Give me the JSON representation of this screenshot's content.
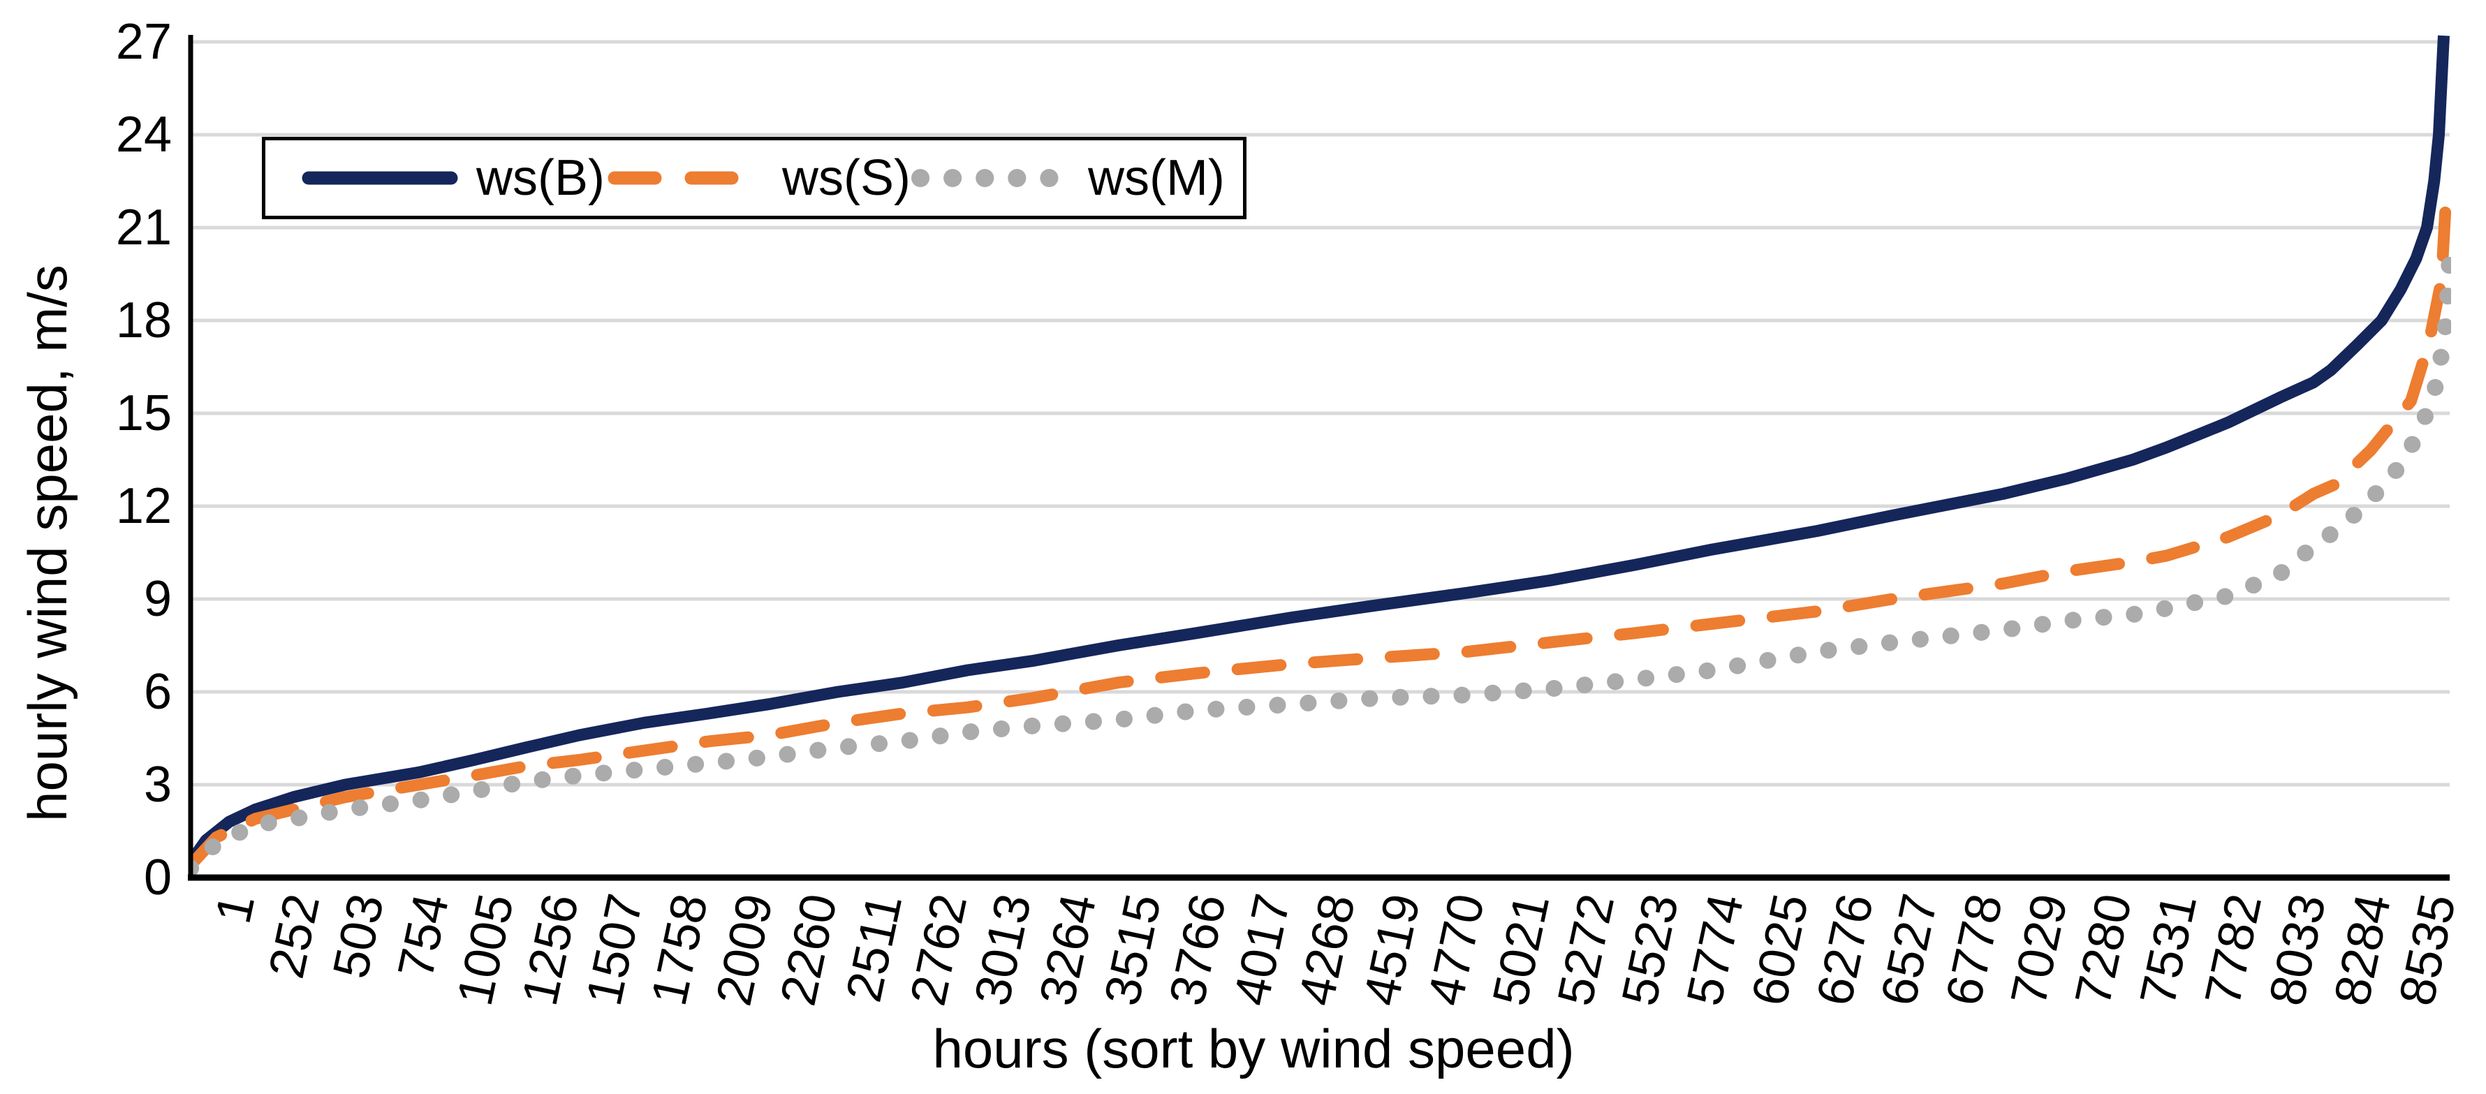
{
  "figure": {
    "background": "#FFFFFF",
    "text_color": "#000000"
  },
  "chart_data": {
    "type": "line",
    "title": "",
    "xlabel": "hours (sort by wind speed)",
    "ylabel": "hourly wind speed, m/s",
    "ylim": [
      0,
      27
    ],
    "y_ticks": [
      0,
      3,
      6,
      9,
      12,
      15,
      18,
      21,
      24,
      27
    ],
    "x_max": 8760,
    "x_ticks": [
      1,
      252,
      503,
      754,
      1005,
      1256,
      1507,
      1758,
      2009,
      2260,
      2511,
      2762,
      3013,
      3264,
      3515,
      3766,
      4017,
      4268,
      4519,
      4770,
      5021,
      5272,
      5523,
      5774,
      6025,
      6276,
      6527,
      6778,
      7029,
      7280,
      7531,
      7782,
      8033,
      8284,
      8535
    ],
    "grid": "horizontal",
    "gridline_color": "#D9D9D9",
    "axis_color": "#000000",
    "legend_position": "top-left-inside",
    "legend_border_color": "#000000",
    "series": [
      {
        "name": "ws(B)",
        "color": "#15265B",
        "style": "solid",
        "points": [
          [
            1,
            0.5
          ],
          [
            60,
            1.2
          ],
          [
            150,
            1.8
          ],
          [
            252,
            2.2
          ],
          [
            400,
            2.6
          ],
          [
            600,
            3.0
          ],
          [
            886,
            3.4
          ],
          [
            1100,
            3.8
          ],
          [
            1300,
            4.2
          ],
          [
            1507,
            4.6
          ],
          [
            1758,
            5.0
          ],
          [
            2009,
            5.3
          ],
          [
            2242,
            5.6
          ],
          [
            2511,
            6.0
          ],
          [
            2762,
            6.3
          ],
          [
            3013,
            6.7
          ],
          [
            3264,
            7.0
          ],
          [
            3597,
            7.5
          ],
          [
            3900,
            7.9
          ],
          [
            4268,
            8.4
          ],
          [
            4600,
            8.8
          ],
          [
            4952,
            9.2
          ],
          [
            5272,
            9.6
          ],
          [
            5600,
            10.1
          ],
          [
            5900,
            10.6
          ],
          [
            6308,
            11.2
          ],
          [
            6600,
            11.7
          ],
          [
            7029,
            12.4
          ],
          [
            7280,
            12.9
          ],
          [
            7531,
            13.5
          ],
          [
            7663,
            13.9
          ],
          [
            7900,
            14.7
          ],
          [
            8100,
            15.5
          ],
          [
            8232,
            16.0
          ],
          [
            8300,
            16.4
          ],
          [
            8400,
            17.2
          ],
          [
            8496,
            18.0
          ],
          [
            8570,
            19.0
          ],
          [
            8630,
            20.0
          ],
          [
            8672,
            21.0
          ],
          [
            8700,
            22.5
          ],
          [
            8718,
            24.0
          ],
          [
            8737,
            27.2
          ]
        ]
      },
      {
        "name": "ws(S)",
        "color": "#ED7D31",
        "style": "dash",
        "points": [
          [
            1,
            0.4
          ],
          [
            100,
            1.3
          ],
          [
            252,
            1.9
          ],
          [
            400,
            2.2
          ],
          [
            600,
            2.6
          ],
          [
            886,
            3.0
          ],
          [
            1100,
            3.3
          ],
          [
            1300,
            3.6
          ],
          [
            1507,
            3.8
          ],
          [
            1758,
            4.1
          ],
          [
            2009,
            4.4
          ],
          [
            2242,
            4.6
          ],
          [
            2511,
            5.0
          ],
          [
            2762,
            5.3
          ],
          [
            3013,
            5.5
          ],
          [
            3264,
            5.8
          ],
          [
            3597,
            6.3
          ],
          [
            3900,
            6.6
          ],
          [
            4268,
            6.9
          ],
          [
            4600,
            7.1
          ],
          [
            4952,
            7.3
          ],
          [
            5272,
            7.6
          ],
          [
            5600,
            7.9
          ],
          [
            5900,
            8.2
          ],
          [
            6308,
            8.6
          ],
          [
            6600,
            9.0
          ],
          [
            7029,
            9.5
          ],
          [
            7280,
            9.9
          ],
          [
            7531,
            10.2
          ],
          [
            7663,
            10.4
          ],
          [
            7900,
            11.0
          ],
          [
            8100,
            11.7
          ],
          [
            8232,
            12.4
          ],
          [
            8315,
            12.7
          ],
          [
            8453,
            13.8
          ],
          [
            8610,
            15.4
          ],
          [
            8680,
            17.3
          ],
          [
            8728,
            19.3
          ],
          [
            8748,
            22.3
          ]
        ]
      },
      {
        "name": "ws(M)",
        "color": "#ABABAB",
        "style": "dot",
        "points": [
          [
            1,
            0.3
          ],
          [
            100,
            1.1
          ],
          [
            252,
            1.7
          ],
          [
            400,
            1.9
          ],
          [
            600,
            2.2
          ],
          [
            886,
            2.5
          ],
          [
            1100,
            2.8
          ],
          [
            1300,
            3.1
          ],
          [
            1507,
            3.3
          ],
          [
            1758,
            3.5
          ],
          [
            2009,
            3.7
          ],
          [
            2242,
            3.9
          ],
          [
            2511,
            4.2
          ],
          [
            2762,
            4.4
          ],
          [
            3013,
            4.7
          ],
          [
            3264,
            4.9
          ],
          [
            3597,
            5.1
          ],
          [
            3900,
            5.4
          ],
          [
            4268,
            5.6
          ],
          [
            4600,
            5.8
          ],
          [
            4952,
            5.9
          ],
          [
            5272,
            6.1
          ],
          [
            5600,
            6.4
          ],
          [
            5900,
            6.7
          ],
          [
            6308,
            7.3
          ],
          [
            6600,
            7.6
          ],
          [
            7029,
            8.0
          ],
          [
            7280,
            8.3
          ],
          [
            7531,
            8.5
          ],
          [
            7663,
            8.7
          ],
          [
            7900,
            9.1
          ],
          [
            8100,
            9.8
          ],
          [
            8232,
            10.7
          ],
          [
            8350,
            11.4
          ],
          [
            8450,
            12.2
          ],
          [
            8530,
            12.9
          ],
          [
            8590,
            13.6
          ],
          [
            8640,
            14.4
          ],
          [
            8680,
            15.2
          ],
          [
            8710,
            16.0
          ],
          [
            8730,
            17.0
          ],
          [
            8742,
            17.7
          ],
          [
            8750,
            18.5
          ],
          [
            8756,
            19.3
          ],
          [
            8760,
            20.2
          ]
        ]
      }
    ]
  }
}
